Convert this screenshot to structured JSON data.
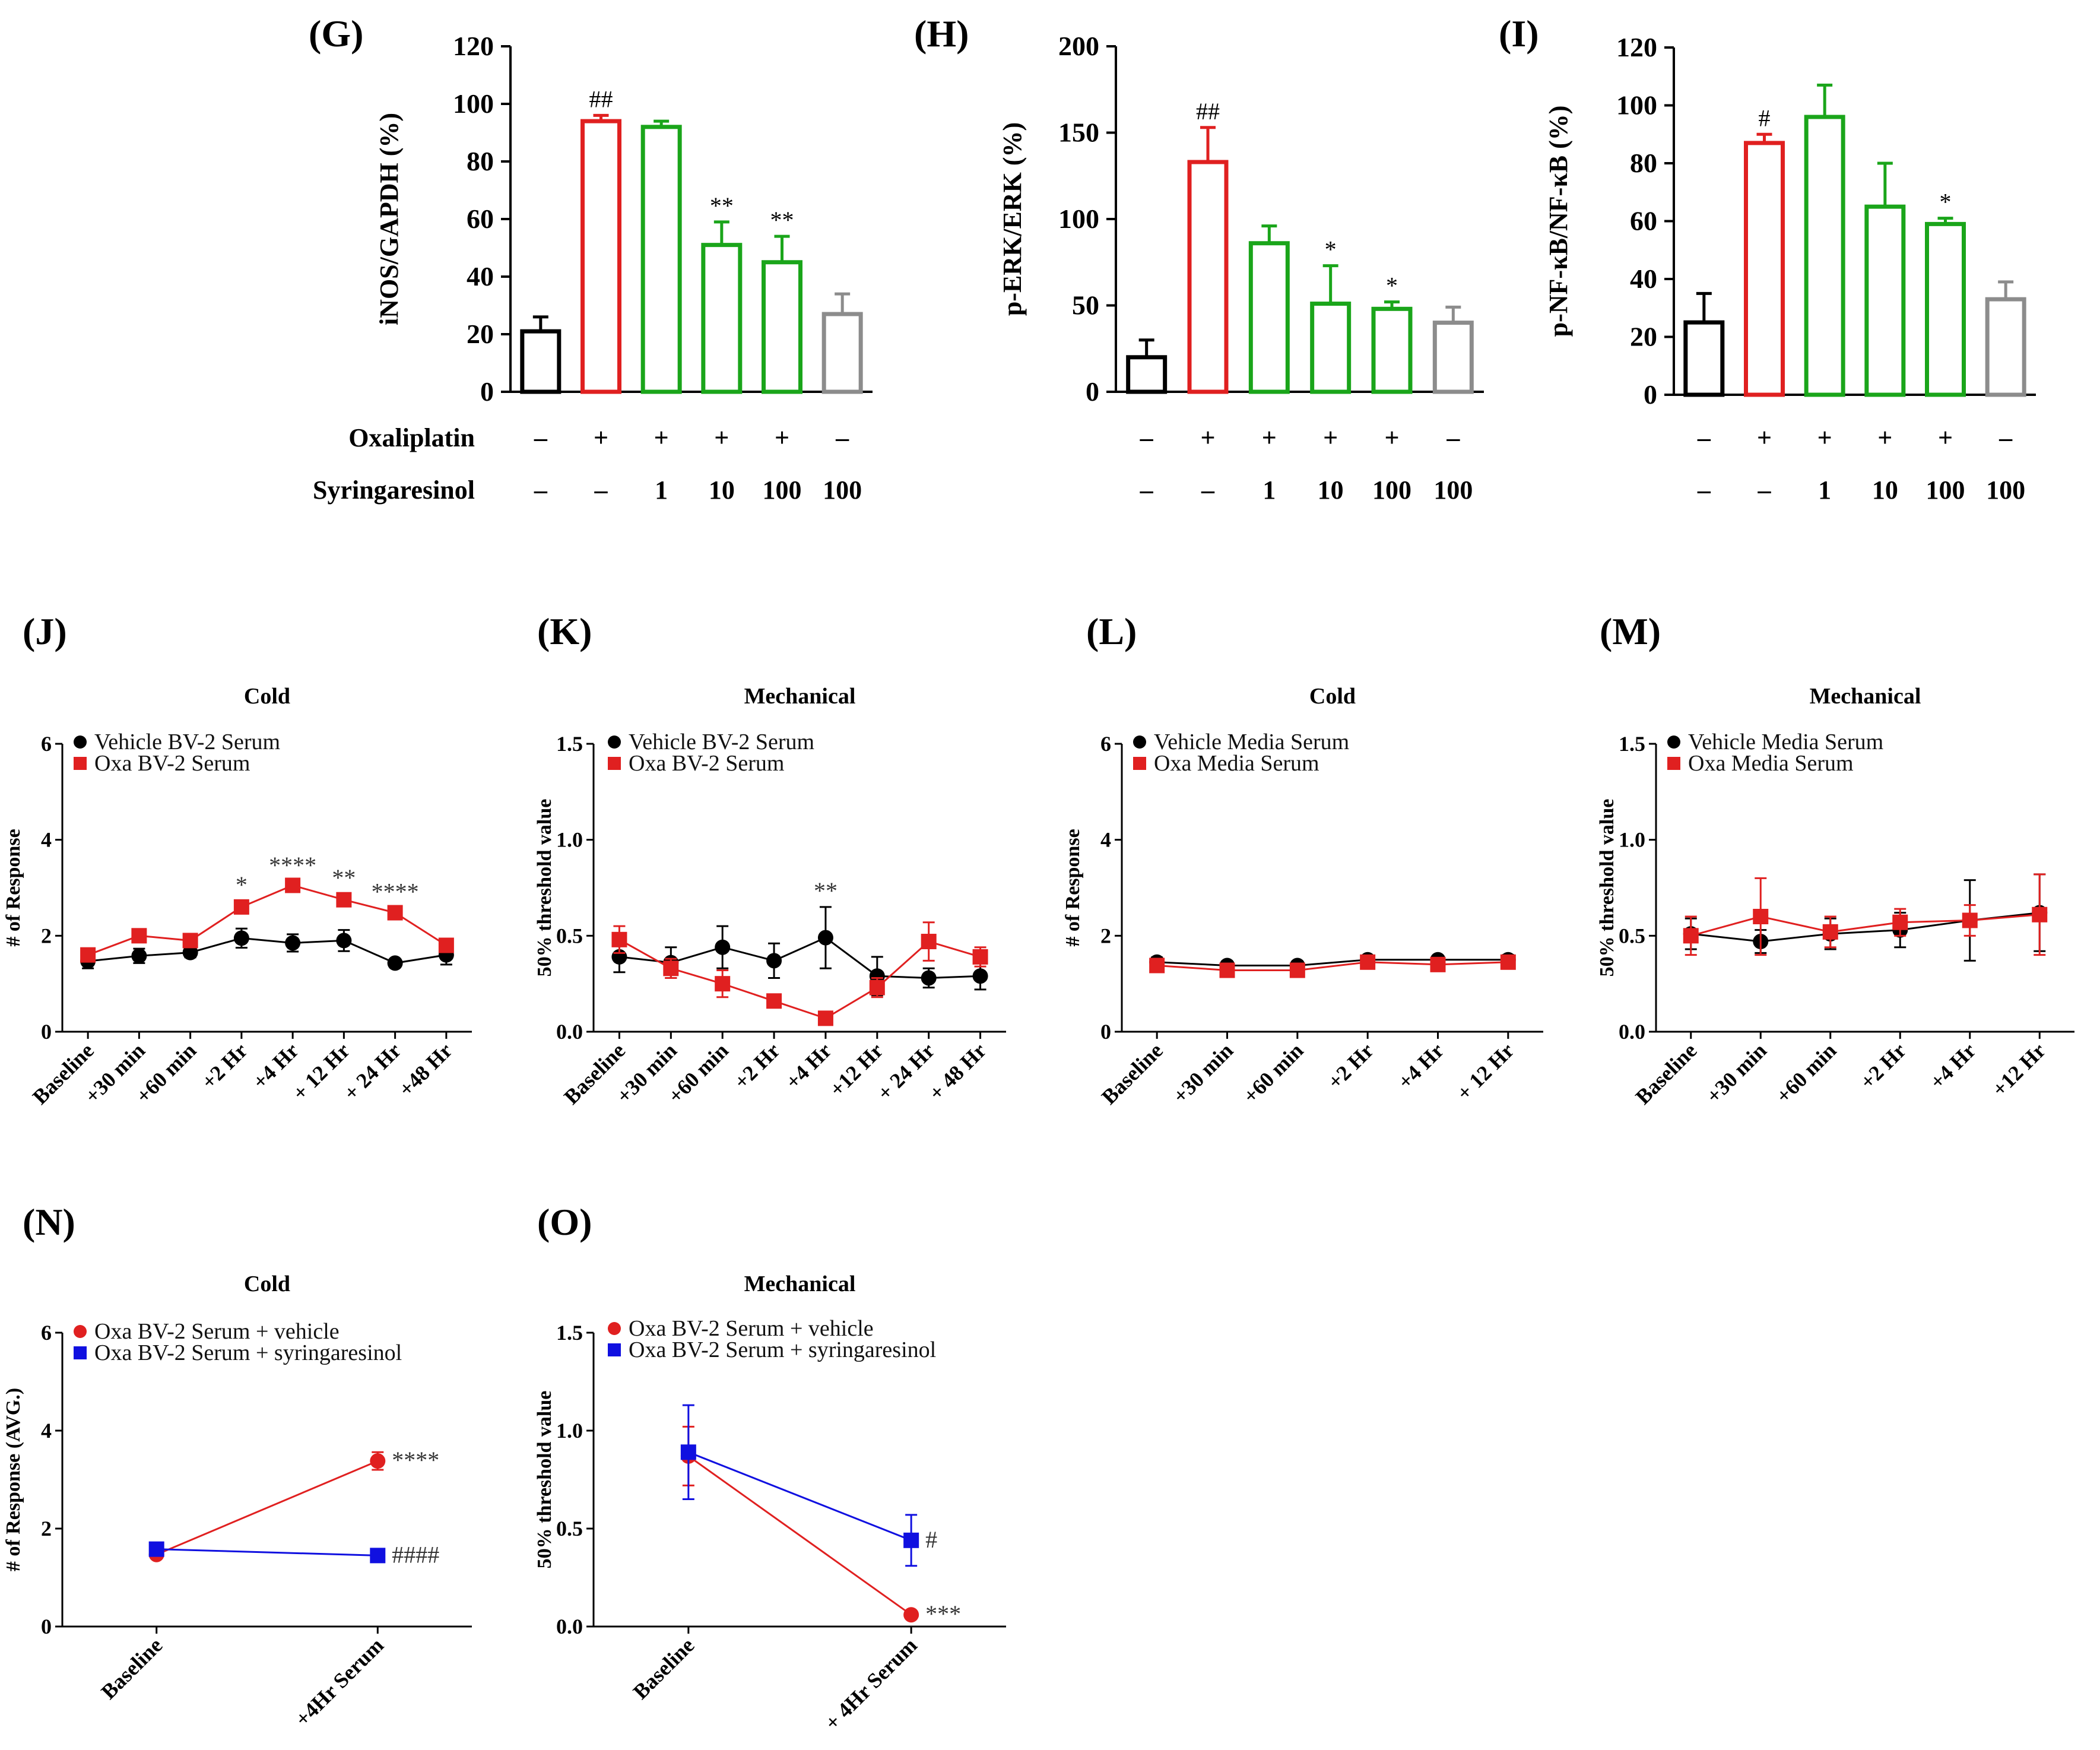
{
  "colors": {
    "black": "#000000",
    "red": "#e02020",
    "green": "#1aa51a",
    "gray": "#8c8c8c",
    "blue": "#1010e0"
  },
  "conditions": {
    "oxaliplatin_label": "Oxaliplatin",
    "syringaresinol_label": "Syringaresinol",
    "oxaliplatin": [
      "–",
      "+",
      "+",
      "+",
      "+",
      "–"
    ],
    "syringaresinol": [
      "–",
      "–",
      "1",
      "10",
      "100",
      "100"
    ]
  },
  "chart_data": [
    {
      "id": "G",
      "panel_label": "(G)",
      "type": "bar",
      "ylabel": "iNOS/GAPDH (%)",
      "ylim": [
        0,
        120
      ],
      "yticks": [
        "0",
        "20",
        "40",
        "60",
        "80",
        "100",
        "120"
      ],
      "values": [
        21,
        94,
        92,
        51,
        45,
        27
      ],
      "errors": [
        5,
        2,
        2,
        8,
        9,
        7
      ],
      "bar_colors": [
        "black",
        "red",
        "green",
        "green",
        "green",
        "gray"
      ],
      "annotations": [
        "",
        "##",
        "",
        "**",
        "**",
        ""
      ]
    },
    {
      "id": "H",
      "panel_label": "(H)",
      "type": "bar",
      "ylabel": "p-ERK/ERK (%)",
      "ylim": [
        0,
        200
      ],
      "yticks": [
        "0",
        "50",
        "100",
        "150",
        "200"
      ],
      "values": [
        20,
        133,
        86,
        51,
        48,
        40
      ],
      "errors": [
        10,
        20,
        10,
        22,
        4,
        9
      ],
      "bar_colors": [
        "black",
        "red",
        "green",
        "green",
        "green",
        "gray"
      ],
      "annotations": [
        "",
        "##",
        "",
        "*",
        "*",
        ""
      ]
    },
    {
      "id": "I",
      "panel_label": "(I)",
      "type": "bar",
      "ylabel": "p-NF-κB/NF-κB (%)",
      "ylim": [
        0,
        120
      ],
      "yticks": [
        "0",
        "20",
        "40",
        "60",
        "80",
        "100",
        "120"
      ],
      "values": [
        25,
        87,
        96,
        65,
        59,
        33
      ],
      "errors": [
        10,
        3,
        11,
        15,
        2,
        6
      ],
      "bar_colors": [
        "black",
        "red",
        "green",
        "green",
        "green",
        "gray"
      ],
      "annotations": [
        "",
        "#",
        "",
        "",
        "*",
        ""
      ]
    },
    {
      "id": "J",
      "panel_label": "(J)",
      "type": "line",
      "title": "Cold",
      "ylabel": "# of Response",
      "ylim": [
        0,
        6
      ],
      "yticks": [
        "0",
        "2",
        "4",
        "6"
      ],
      "categories": [
        "Baseline",
        "+30 min",
        "+60 min",
        "+2 Hr",
        "+4 Hr",
        "+ 12 Hr",
        "+ 24 Hr",
        "+48 Hr"
      ],
      "series": [
        {
          "name": "Vehicle BV-2 Serum",
          "color": "black",
          "marker": "circle",
          "values": [
            1.47,
            1.58,
            1.65,
            1.95,
            1.85,
            1.9,
            1.43,
            1.6
          ],
          "errors": [
            0.15,
            0.15,
            0.1,
            0.2,
            0.18,
            0.22,
            0.05,
            0.2
          ]
        },
        {
          "name": "Oxa BV-2 Serum",
          "color": "red",
          "marker": "square",
          "values": [
            1.6,
            2.0,
            1.9,
            2.6,
            3.05,
            2.75,
            2.48,
            1.8
          ],
          "errors": [
            0.08,
            0.1,
            0.12,
            0.12,
            0.08,
            0.12,
            0.1,
            0.1
          ]
        }
      ],
      "annotations": [
        "",
        "",
        "",
        "*",
        "****",
        "**",
        "****",
        ""
      ]
    },
    {
      "id": "K",
      "panel_label": "(K)",
      "type": "line",
      "title": "Mechanical",
      "ylabel": "50% threshold value",
      "ylim": [
        0,
        1.5
      ],
      "yticks": [
        "0.0",
        "0.5",
        "1.0",
        "1.5"
      ],
      "categories": [
        "Baseline",
        "+30 min",
        "+60 min",
        "+2 Hr",
        "+4 Hr",
        "+12 Hr",
        "+ 24 Hr",
        "+ 48 Hr"
      ],
      "series": [
        {
          "name": "Vehicle BV-2 Serum",
          "color": "black",
          "marker": "circle",
          "values": [
            0.39,
            0.36,
            0.44,
            0.37,
            0.49,
            0.29,
            0.28,
            0.29
          ],
          "errors": [
            0.08,
            0.08,
            0.11,
            0.09,
            0.16,
            0.1,
            0.05,
            0.07
          ]
        },
        {
          "name": "Oxa BV-2 Serum",
          "color": "red",
          "marker": "square",
          "values": [
            0.48,
            0.33,
            0.25,
            0.16,
            0.07,
            0.23,
            0.47,
            0.39
          ],
          "errors": [
            0.07,
            0.05,
            0.07,
            0.03,
            0.02,
            0.05,
            0.1,
            0.05
          ]
        }
      ],
      "annotations": [
        "",
        "",
        "",
        "",
        "**",
        "",
        "",
        ""
      ]
    },
    {
      "id": "L",
      "panel_label": "(L)",
      "type": "line",
      "title": "Cold",
      "ylabel": "# of Response",
      "ylim": [
        0,
        6
      ],
      "yticks": [
        "0",
        "2",
        "4",
        "6"
      ],
      "categories": [
        "Baseline",
        "+30 min",
        "+60 min",
        "+2 Hr",
        "+4 Hr",
        "+ 12 Hr"
      ],
      "series": [
        {
          "name": "Vehicle Media Serum",
          "color": "black",
          "marker": "circle",
          "values": [
            1.45,
            1.38,
            1.38,
            1.5,
            1.5,
            1.5
          ],
          "errors": [
            0.1,
            0.05,
            0.05,
            0.06,
            0.08,
            0.1
          ]
        },
        {
          "name": "Oxa Media Serum",
          "color": "red",
          "marker": "square",
          "values": [
            1.38,
            1.28,
            1.28,
            1.45,
            1.4,
            1.45
          ],
          "errors": [
            0.08,
            0.05,
            0.05,
            0.06,
            0.06,
            0.08
          ]
        }
      ],
      "annotations": [
        "",
        "",
        "",
        "",
        "",
        ""
      ]
    },
    {
      "id": "M",
      "panel_label": "(M)",
      "type": "line",
      "title": "Mechanical",
      "ylabel": "50% threshold value",
      "ylim": [
        0,
        1.5
      ],
      "yticks": [
        "0.0",
        "0.5",
        "1.0",
        "1.5"
      ],
      "categories": [
        "Baseline",
        "+30 min",
        "+60 min",
        "+2 Hr",
        "+4 Hr",
        "+12 Hr"
      ],
      "series": [
        {
          "name": "Vehicle Media Serum",
          "color": "black",
          "marker": "circle",
          "values": [
            0.51,
            0.47,
            0.51,
            0.53,
            0.58,
            0.62
          ],
          "errors": [
            0.08,
            0.06,
            0.08,
            0.09,
            0.21,
            0.2
          ]
        },
        {
          "name": "Oxa Media Serum",
          "color": "red",
          "marker": "square",
          "values": [
            0.5,
            0.6,
            0.52,
            0.57,
            0.58,
            0.61
          ],
          "errors": [
            0.1,
            0.2,
            0.08,
            0.07,
            0.08,
            0.21
          ]
        }
      ],
      "annotations": [
        "",
        "",
        "",
        "",
        "",
        ""
      ]
    },
    {
      "id": "N",
      "panel_label": "(N)",
      "type": "line",
      "title": "Cold",
      "ylabel": "# of Response (AVG.)",
      "ylim": [
        0,
        6
      ],
      "yticks": [
        "0",
        "2",
        "4",
        "6"
      ],
      "categories": [
        "Baseline",
        "+4Hr Serum"
      ],
      "series": [
        {
          "name": "Oxa BV-2 Serum + vehicle",
          "color": "red",
          "marker": "circle",
          "values": [
            1.47,
            3.38
          ],
          "errors": [
            0.05,
            0.18
          ],
          "end_label": "****"
        },
        {
          "name": "Oxa BV-2 Serum + syringaresinol",
          "color": "blue",
          "marker": "square",
          "values": [
            1.58,
            1.45
          ],
          "errors": [
            0.05,
            0.05
          ],
          "end_label": "####"
        }
      ]
    },
    {
      "id": "O",
      "panel_label": "(O)",
      "type": "line",
      "title": "Mechanical",
      "ylabel": "50% threshold value",
      "ylim": [
        0,
        1.5
      ],
      "yticks": [
        "0.0",
        "0.5",
        "1.0",
        "1.5"
      ],
      "categories": [
        "Baseline",
        "+ 4Hr Serum"
      ],
      "series": [
        {
          "name": "Oxa BV-2 Serum + vehicle",
          "color": "red",
          "marker": "circle",
          "values": [
            0.87,
            0.06
          ],
          "errors": [
            0.15,
            0.02
          ],
          "end_label": "***"
        },
        {
          "name": "Oxa BV-2 Serum + syringaresinol",
          "color": "blue",
          "marker": "square",
          "values": [
            0.89,
            0.44
          ],
          "errors": [
            0.24,
            0.13
          ],
          "end_label": "#"
        }
      ]
    }
  ]
}
